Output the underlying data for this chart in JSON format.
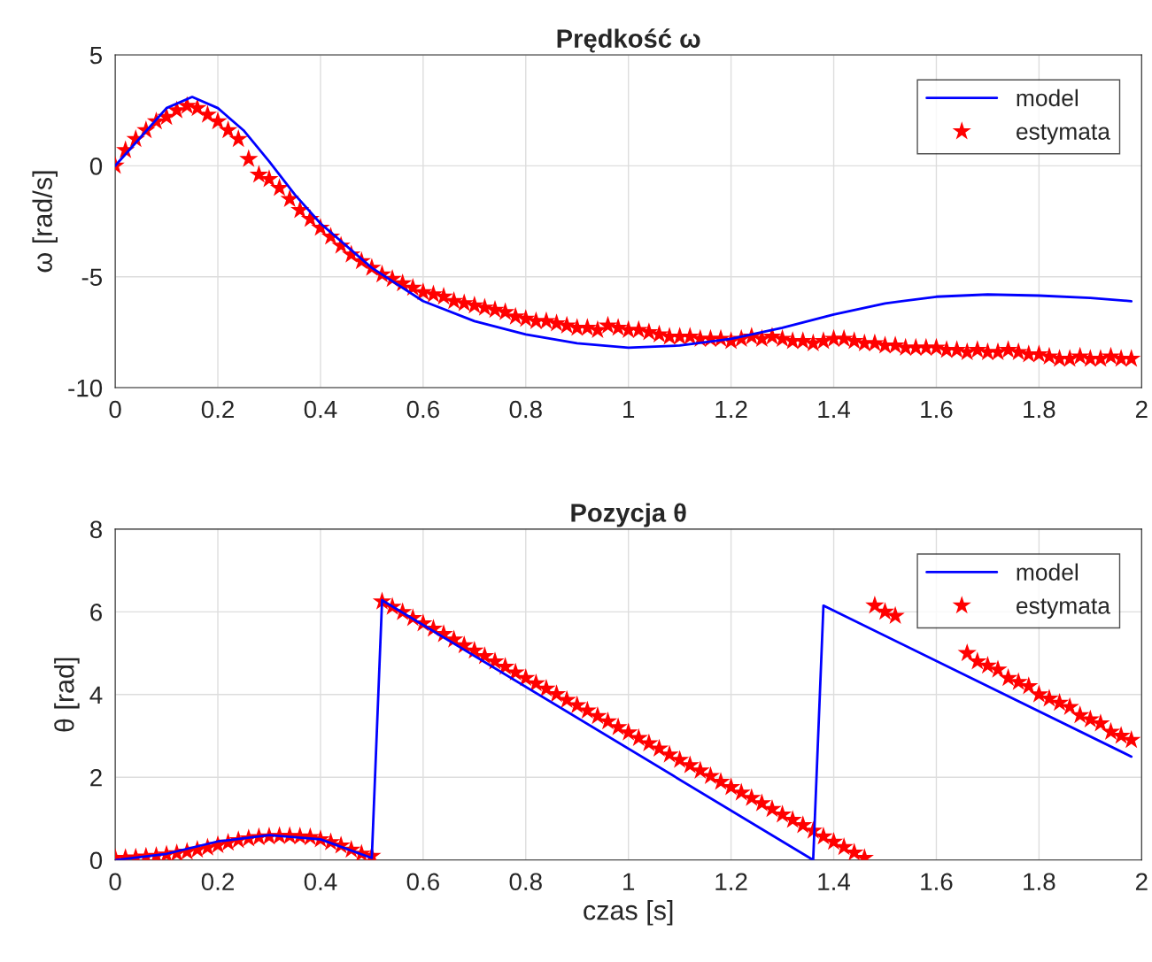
{
  "chart_data": [
    {
      "type": "line",
      "title": "Prędkość ω",
      "ylabel": "ω [rad/s]",
      "xlim": [
        0,
        2
      ],
      "ylim": [
        -10,
        5
      ],
      "xticks": [
        0,
        0.2,
        0.4,
        0.6,
        0.8,
        1,
        1.2,
        1.4,
        1.6,
        1.8,
        2
      ],
      "yticks": [
        -10,
        -5,
        0,
        5
      ],
      "grid": true,
      "legend": "top right",
      "series": [
        {
          "name": "model",
          "color": "#0000ff",
          "marker": "none",
          "line_style": "solid",
          "x": [
            0,
            0.05,
            0.1,
            0.15,
            0.2,
            0.25,
            0.3,
            0.35,
            0.4,
            0.5,
            0.6,
            0.7,
            0.8,
            0.9,
            1.0,
            1.1,
            1.2,
            1.3,
            1.4,
            1.5,
            1.6,
            1.7,
            1.8,
            1.9,
            1.98
          ],
          "values": [
            0,
            1.3,
            2.6,
            3.1,
            2.6,
            1.6,
            0.2,
            -1.3,
            -2.6,
            -4.6,
            -6.1,
            -7.0,
            -7.6,
            -8.0,
            -8.2,
            -8.1,
            -7.8,
            -7.3,
            -6.7,
            -6.2,
            -5.9,
            -5.8,
            -5.85,
            -5.95,
            -6.1
          ]
        },
        {
          "name": "estymata",
          "type": "scatter",
          "color": "#ff0000",
          "marker": "star",
          "x": [
            0,
            0.02,
            0.04,
            0.06,
            0.08,
            0.1,
            0.12,
            0.14,
            0.16,
            0.18,
            0.2,
            0.22,
            0.24,
            0.26,
            0.28,
            0.3,
            0.32,
            0.34,
            0.36,
            0.38,
            0.4,
            0.42,
            0.44,
            0.46,
            0.48,
            0.5,
            0.52,
            0.54,
            0.56,
            0.58,
            0.6,
            0.62,
            0.64,
            0.66,
            0.68,
            0.7,
            0.72,
            0.74,
            0.76,
            0.78,
            0.8,
            0.82,
            0.84,
            0.86,
            0.88,
            0.9,
            0.92,
            0.94,
            0.96,
            0.98,
            1.0,
            1.02,
            1.04,
            1.06,
            1.08,
            1.1,
            1.12,
            1.14,
            1.16,
            1.18,
            1.2,
            1.22,
            1.24,
            1.26,
            1.28,
            1.3,
            1.32,
            1.34,
            1.36,
            1.38,
            1.4,
            1.42,
            1.44,
            1.46,
            1.48,
            1.5,
            1.52,
            1.54,
            1.56,
            1.58,
            1.6,
            1.62,
            1.64,
            1.66,
            1.68,
            1.7,
            1.72,
            1.74,
            1.76,
            1.78,
            1.8,
            1.82,
            1.84,
            1.86,
            1.88,
            1.9,
            1.92,
            1.94,
            1.96,
            1.98
          ],
          "values": [
            0,
            0.7,
            1.2,
            1.6,
            2.0,
            2.2,
            2.5,
            2.7,
            2.6,
            2.3,
            2.0,
            1.6,
            1.2,
            0.3,
            -0.4,
            -0.6,
            -1.0,
            -1.5,
            -2.0,
            -2.4,
            -2.8,
            -3.2,
            -3.6,
            -4.0,
            -4.3,
            -4.6,
            -4.9,
            -5.1,
            -5.3,
            -5.5,
            -5.7,
            -5.8,
            -5.9,
            -6.1,
            -6.2,
            -6.3,
            -6.4,
            -6.5,
            -6.6,
            -6.8,
            -6.9,
            -7.0,
            -7.0,
            -7.1,
            -7.2,
            -7.3,
            -7.3,
            -7.4,
            -7.2,
            -7.3,
            -7.4,
            -7.4,
            -7.5,
            -7.6,
            -7.7,
            -7.7,
            -7.7,
            -7.8,
            -7.8,
            -7.8,
            -7.9,
            -7.8,
            -7.7,
            -7.8,
            -7.7,
            -7.8,
            -7.9,
            -7.9,
            -8.0,
            -7.9,
            -7.8,
            -7.8,
            -7.9,
            -8.0,
            -8.0,
            -8.1,
            -8.1,
            -8.2,
            -8.2,
            -8.2,
            -8.2,
            -8.3,
            -8.3,
            -8.4,
            -8.3,
            -8.4,
            -8.4,
            -8.3,
            -8.4,
            -8.5,
            -8.5,
            -8.6,
            -8.7,
            -8.7,
            -8.6,
            -8.7,
            -8.7,
            -8.6,
            -8.7,
            -8.7
          ]
        }
      ]
    },
    {
      "type": "line",
      "title": "Pozycja θ",
      "xlabel": "czas [s]",
      "ylabel": "θ [rad]",
      "xlim": [
        0,
        2
      ],
      "ylim": [
        0,
        8
      ],
      "xticks": [
        0,
        0.2,
        0.4,
        0.6,
        0.8,
        1,
        1.2,
        1.4,
        1.6,
        1.8,
        2
      ],
      "yticks": [
        0,
        2,
        4,
        6,
        8
      ],
      "grid": true,
      "legend": "top right",
      "series": [
        {
          "name": "model",
          "color": "#0000ff",
          "marker": "none",
          "line_style": "solid",
          "x": [
            0,
            0.1,
            0.2,
            0.3,
            0.4,
            0.5,
            0.52,
            1.36,
            1.38,
            1.98
          ],
          "values": [
            0,
            0.15,
            0.45,
            0.6,
            0.5,
            0.05,
            6.28,
            0.0,
            6.15,
            2.5
          ]
        },
        {
          "name": "estymata",
          "type": "scatter",
          "color": "#ff0000",
          "marker": "star",
          "x": [
            0,
            0.02,
            0.04,
            0.06,
            0.08,
            0.1,
            0.12,
            0.14,
            0.16,
            0.18,
            0.2,
            0.22,
            0.24,
            0.26,
            0.28,
            0.3,
            0.32,
            0.34,
            0.36,
            0.38,
            0.4,
            0.42,
            0.44,
            0.46,
            0.48,
            0.5,
            0.52,
            0.54,
            0.56,
            0.58,
            0.6,
            0.62,
            0.64,
            0.66,
            0.68,
            0.7,
            0.72,
            0.74,
            0.76,
            0.78,
            0.8,
            0.82,
            0.84,
            0.86,
            0.88,
            0.9,
            0.92,
            0.94,
            0.96,
            0.98,
            1.0,
            1.02,
            1.04,
            1.06,
            1.08,
            1.1,
            1.12,
            1.14,
            1.16,
            1.18,
            1.2,
            1.22,
            1.24,
            1.26,
            1.28,
            1.3,
            1.32,
            1.34,
            1.36,
            1.38,
            1.4,
            1.42,
            1.44,
            1.46,
            1.48,
            1.5,
            1.52,
            1.54,
            1.56,
            1.58,
            1.6,
            1.62,
            1.64,
            1.66,
            1.68,
            1.7,
            1.72,
            1.74,
            1.76,
            1.78,
            1.8,
            1.82,
            1.84,
            1.86,
            1.88,
            1.9,
            1.92,
            1.94,
            1.96,
            1.98
          ],
          "values": [
            0.05,
            0.05,
            0.06,
            0.08,
            0.1,
            0.13,
            0.16,
            0.2,
            0.25,
            0.3,
            0.36,
            0.42,
            0.48,
            0.52,
            0.55,
            0.57,
            0.58,
            0.58,
            0.57,
            0.55,
            0.5,
            0.43,
            0.35,
            0.25,
            0.15,
            0.1,
            6.25,
            6.12,
            5.99,
            5.85,
            5.72,
            5.59,
            5.46,
            5.33,
            5.19,
            5.06,
            4.93,
            4.8,
            4.67,
            4.53,
            4.4,
            4.27,
            4.14,
            4.01,
            3.87,
            3.74,
            3.61,
            3.48,
            3.35,
            3.21,
            3.08,
            2.95,
            2.82,
            2.69,
            2.55,
            2.42,
            2.29,
            2.16,
            2.03,
            1.89,
            1.76,
            1.63,
            1.5,
            1.37,
            1.23,
            1.1,
            0.97,
            0.84,
            0.71,
            0.57,
            0.44,
            0.31,
            0.18,
            0.05,
            6.15,
            6.0,
            5.9,
            null,
            null,
            null,
            null,
            null,
            null,
            5.0,
            4.8,
            4.7,
            4.6,
            4.4,
            4.3,
            4.2,
            4.0,
            3.9,
            3.8,
            3.7,
            3.5,
            3.4,
            3.3,
            3.1,
            3.0,
            2.9
          ]
        }
      ]
    }
  ]
}
